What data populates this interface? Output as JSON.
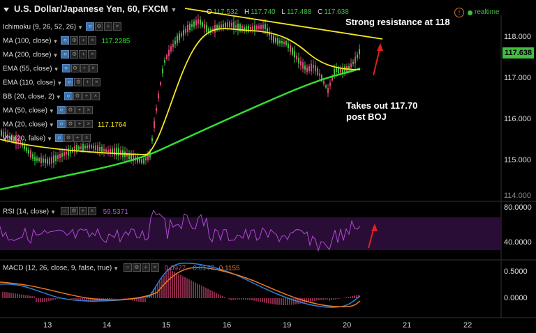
{
  "header": {
    "symbol_title": "U.S. Dollar/Japanese Yen, 60, FXCM",
    "ohlc": {
      "o_label": "O",
      "o_value": "117.532",
      "h_label": "H",
      "h_value": "117.740",
      "l_label": "L",
      "l_value": "117.488",
      "c_label": "C",
      "c_value": "117.638"
    },
    "status": "realtime"
  },
  "indicators": [
    {
      "label": "Ichimoku (9, 26, 52, 26)",
      "value": ""
    },
    {
      "label": "MA (100, close)",
      "value": "117.2285"
    },
    {
      "label": "MA (200, close)",
      "value": ""
    },
    {
      "label": "EMA (55, close)",
      "value": ""
    },
    {
      "label": "EMA (110, close)",
      "value": ""
    },
    {
      "label": "BB (20, close, 2)",
      "value": ""
    },
    {
      "label": "MA (50, close)",
      "value": ""
    },
    {
      "label": "MA (20, close)",
      "value": "117.1764"
    },
    {
      "label": "Vol (20, false)",
      "value": ""
    }
  ],
  "annotations": {
    "resistance": "Strong resistance at 118",
    "takes_out_1": "Takes out 117.70",
    "takes_out_2": "post BOJ"
  },
  "price_axis": {
    "ticks": [
      "118.000",
      "117.000",
      "116.000",
      "115.000",
      "114.000"
    ],
    "current": "117.638"
  },
  "rsi": {
    "label": "RSI (14, close)",
    "value": "59.5371",
    "ticks": [
      "80.0000",
      "40.0000"
    ]
  },
  "macd": {
    "label": "MACD (12, 26, close, 9, false, true)",
    "v1": "0.0977",
    "v2": "-0.0177",
    "v3": "0.1155",
    "ticks": [
      "0.5000",
      "0.0000"
    ]
  },
  "time_axis": [
    "13",
    "14",
    "15",
    "16",
    "19",
    "20",
    "21",
    "22"
  ],
  "colors": {
    "up": "#3fbf3f",
    "down": "#e0457b",
    "ma_yellow": "#f5e71e",
    "ma_green": "#33dd33",
    "rsi_line": "#b04ad6",
    "macd_blue": "#2f7fd8",
    "macd_orange": "#f07a1a"
  }
}
